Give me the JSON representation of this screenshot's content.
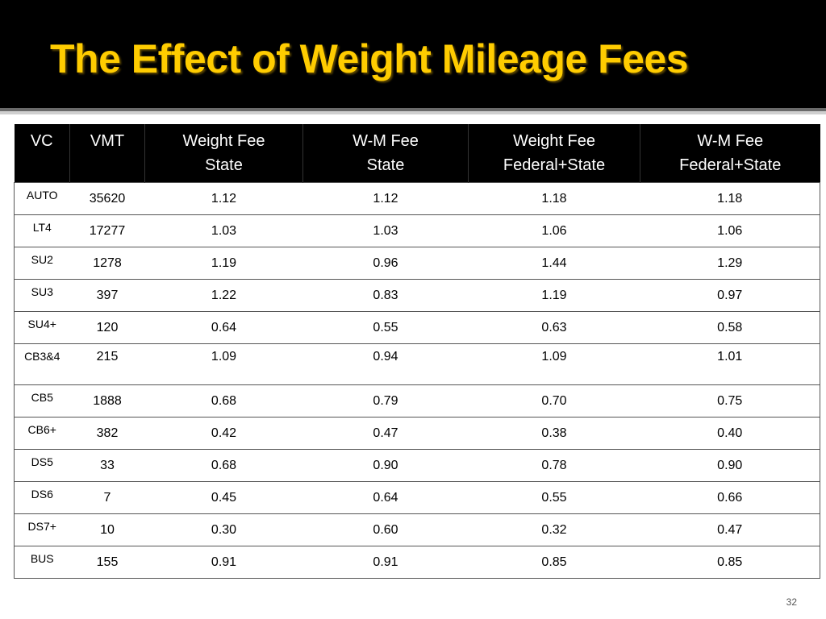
{
  "slide": {
    "title": "The Effect of Weight Mileage Fees",
    "page_number": "32"
  },
  "table": {
    "headers": [
      {
        "lines": [
          "VC"
        ]
      },
      {
        "lines": [
          "VMT"
        ]
      },
      {
        "lines": [
          "Weight Fee",
          "State"
        ]
      },
      {
        "lines": [
          "W-M Fee",
          "State"
        ]
      },
      {
        "lines": [
          "Weight Fee",
          "Federal+State"
        ]
      },
      {
        "lines": [
          "W-M Fee",
          "Federal+State"
        ]
      }
    ],
    "rows": [
      {
        "vc": "AUTO",
        "vmt": "35620",
        "weight_state": "1.12",
        "wm_state": "1.12",
        "weight_fed_state": "1.18",
        "wm_fed_state": "1.18"
      },
      {
        "vc": "LT4",
        "vmt": "17277",
        "weight_state": "1.03",
        "wm_state": "1.03",
        "weight_fed_state": "1.06",
        "wm_fed_state": "1.06"
      },
      {
        "vc": "SU2",
        "vmt": "1278",
        "weight_state": "1.19",
        "wm_state": "0.96",
        "weight_fed_state": "1.44",
        "wm_fed_state": "1.29"
      },
      {
        "vc": "SU3",
        "vmt": "397",
        "weight_state": "1.22",
        "wm_state": "0.83",
        "weight_fed_state": "1.19",
        "wm_fed_state": "0.97"
      },
      {
        "vc": "SU4+",
        "vmt": "120",
        "weight_state": "0.64",
        "wm_state": "0.55",
        "weight_fed_state": "0.63",
        "wm_fed_state": "0.58"
      },
      {
        "vc": "CB3&4",
        "vmt": "215",
        "weight_state": "1.09",
        "wm_state": "0.94",
        "weight_fed_state": "1.09",
        "wm_fed_state": "1.01"
      },
      {
        "vc": "CB5",
        "vmt": "1888",
        "weight_state": "0.68",
        "wm_state": "0.79",
        "weight_fed_state": "0.70",
        "wm_fed_state": "0.75"
      },
      {
        "vc": "CB6+",
        "vmt": "382",
        "weight_state": "0.42",
        "wm_state": "0.47",
        "weight_fed_state": "0.38",
        "wm_fed_state": "0.40"
      },
      {
        "vc": "DS5",
        "vmt": "33",
        "weight_state": "0.68",
        "wm_state": "0.90",
        "weight_fed_state": "0.78",
        "wm_fed_state": "0.90"
      },
      {
        "vc": "DS6",
        "vmt": "7",
        "weight_state": "0.45",
        "wm_state": "0.64",
        "weight_fed_state": "0.55",
        "wm_fed_state": "0.66"
      },
      {
        "vc": "DS7+",
        "vmt": "10",
        "weight_state": "0.30",
        "wm_state": "0.60",
        "weight_fed_state": "0.32",
        "wm_fed_state": "0.47"
      },
      {
        "vc": "BUS",
        "vmt": "155",
        "weight_state": "0.91",
        "wm_state": "0.91",
        "weight_fed_state": "0.85",
        "wm_fed_state": "0.85"
      }
    ]
  },
  "colors": {
    "title_text": "#ffcc00",
    "title_background": "#000000",
    "header_background": "#000000",
    "header_text": "#ffffff"
  }
}
